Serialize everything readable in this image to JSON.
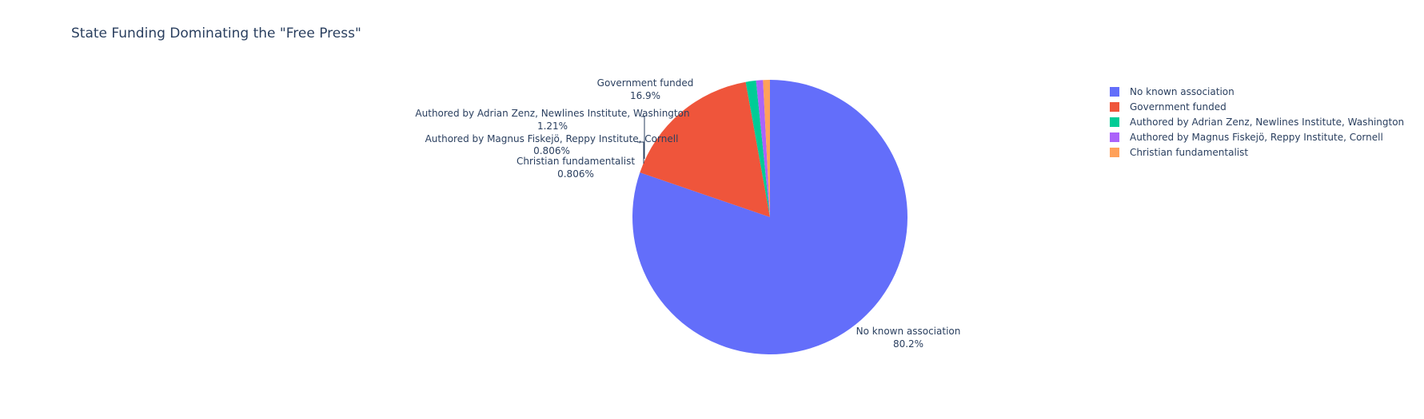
{
  "chart_data": {
    "type": "pie",
    "title": "State Funding Dominating the \"Free Press\"",
    "slices": [
      {
        "label": "No known association",
        "percent": 80.2,
        "percent_label": "80.2%",
        "color": "#636efa"
      },
      {
        "label": "Government funded",
        "percent": 16.9,
        "percent_label": "16.9%",
        "color": "#ef553b"
      },
      {
        "label": "Authored by Adrian Zenz, Newlines Institute, Washington",
        "percent": 1.21,
        "percent_label": "1.21%",
        "color": "#00cc96"
      },
      {
        "label": "Authored by Magnus Fiskejö, Reppy Institute, Cornell",
        "percent": 0.806,
        "percent_label": "0.806%",
        "color": "#ab63fa"
      },
      {
        "label": "Christian fundamentalist",
        "percent": 0.806,
        "percent_label": "0.806%",
        "color": "#ffa15a"
      }
    ],
    "legend_position": "top-right"
  }
}
